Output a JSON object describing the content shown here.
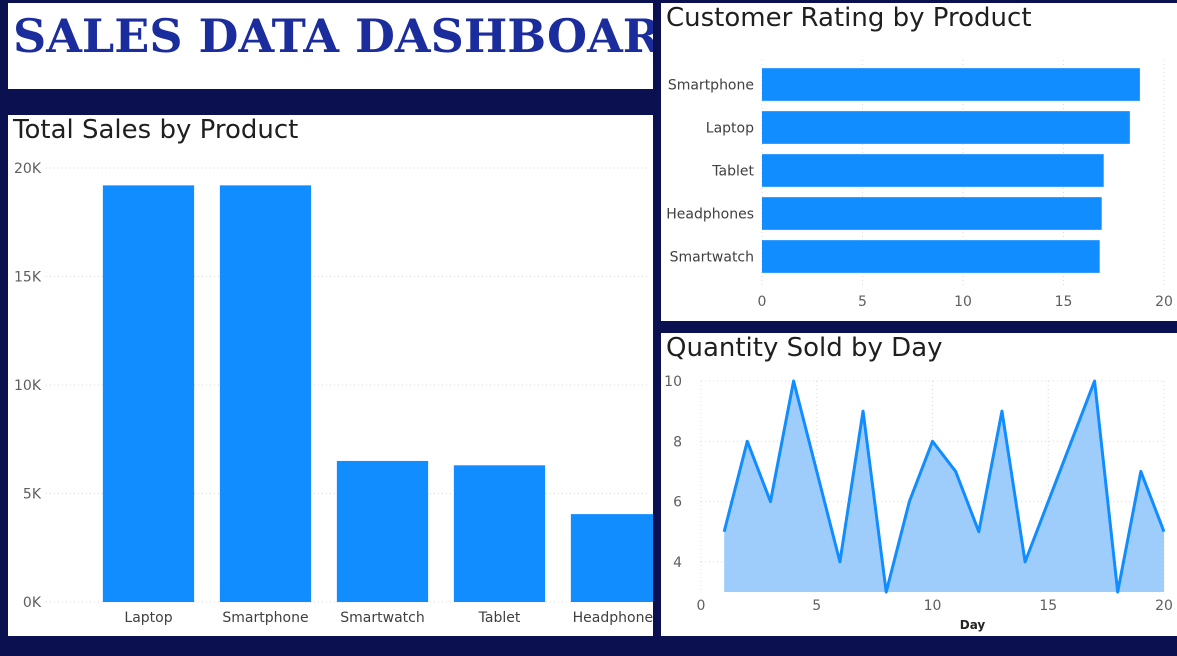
{
  "dashboard": {
    "title": "SALES DATA DASHBOARD"
  },
  "colors": {
    "bar": "#118dff",
    "area_fill": "#9fcdfb",
    "line": "#118dff",
    "title": "#1b2c9c",
    "background": "#0b1150"
  },
  "chart_data": [
    {
      "id": "total_sales",
      "type": "bar",
      "title": "Total Sales by Product",
      "categories": [
        "Laptop",
        "Smartphone",
        "Smartwatch",
        "Tablet",
        "Headphones"
      ],
      "values": [
        19200,
        19200,
        6500,
        6300,
        4050
      ],
      "ylim": [
        0,
        20000
      ],
      "yticks": [
        0,
        5000,
        10000,
        15000,
        20000
      ],
      "ytick_labels": [
        "0K",
        "5K",
        "10K",
        "15K",
        "20K"
      ],
      "xlabel": "",
      "ylabel": "",
      "grid": true
    },
    {
      "id": "customer_rating",
      "type": "bar",
      "orientation": "horizontal",
      "title": "Customer Rating by Product",
      "categories": [
        "Smartphone",
        "Laptop",
        "Tablet",
        "Headphones",
        "Smartwatch"
      ],
      "values": [
        18.8,
        18.3,
        17.0,
        16.9,
        16.8
      ],
      "xlim": [
        0,
        20
      ],
      "xticks": [
        0,
        5,
        10,
        15,
        20
      ],
      "xtick_labels": [
        "0",
        "5",
        "10",
        "15",
        "20"
      ],
      "grid": true
    },
    {
      "id": "quantity_by_day",
      "type": "area",
      "title": "Quantity Sold by Day",
      "x": [
        1,
        2,
        3,
        4,
        5,
        6,
        7,
        8,
        9,
        10,
        11,
        12,
        13,
        14,
        15,
        16,
        17,
        18,
        19,
        20
      ],
      "y": [
        5,
        8,
        6,
        10,
        7,
        4,
        9,
        3,
        6,
        8,
        7,
        5,
        9,
        4,
        6,
        8,
        10,
        3,
        7,
        5
      ],
      "xlim": [
        0,
        20
      ],
      "ylim": [
        3,
        10
      ],
      "xticks": [
        0,
        5,
        10,
        15,
        20
      ],
      "xtick_labels": [
        "0",
        "5",
        "10",
        "15",
        "20"
      ],
      "yticks": [
        4,
        6,
        8,
        10
      ],
      "ytick_labels": [
        "4",
        "6",
        "8",
        "10"
      ],
      "xlabel": "Day",
      "ylabel": "",
      "grid": true
    }
  ]
}
